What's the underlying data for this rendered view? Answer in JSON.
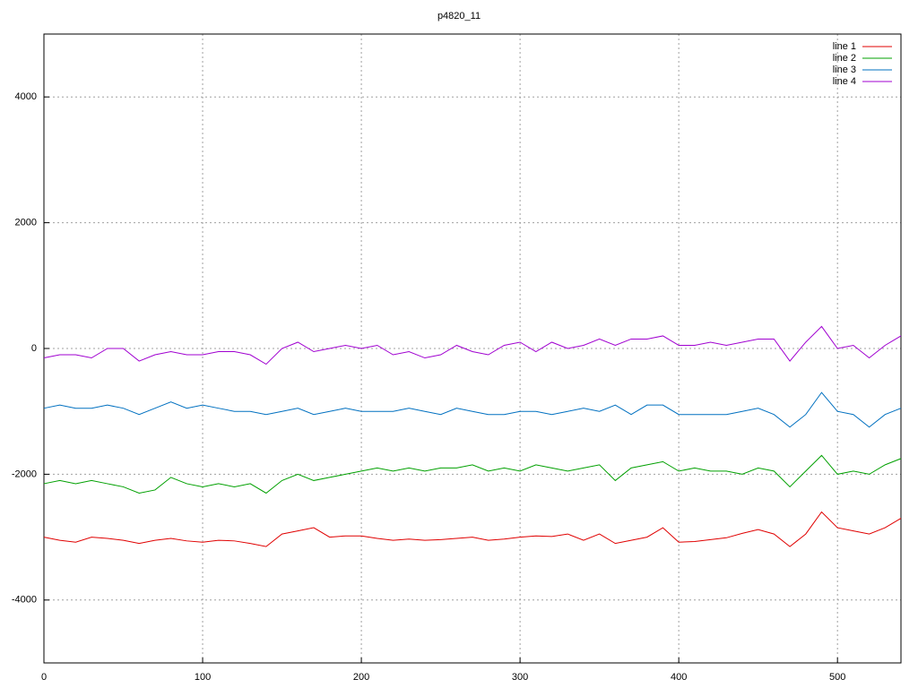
{
  "chart_data": {
    "type": "line",
    "title": "p4820_11",
    "x": [
      0,
      10,
      20,
      30,
      40,
      50,
      60,
      70,
      80,
      90,
      100,
      110,
      120,
      130,
      140,
      150,
      160,
      170,
      180,
      190,
      200,
      210,
      220,
      230,
      240,
      250,
      260,
      270,
      280,
      290,
      300,
      310,
      320,
      330,
      340,
      350,
      360,
      370,
      380,
      390,
      400,
      410,
      420,
      430,
      440,
      450,
      460,
      470,
      480,
      490,
      500,
      510,
      520,
      530,
      540
    ],
    "series": [
      {
        "name": "line 1",
        "color": "#e00000",
        "values": [
          -3000,
          -3050,
          -3080,
          -3000,
          -3020,
          -3050,
          -3100,
          -3050,
          -3020,
          -3060,
          -3080,
          -3050,
          -3060,
          -3100,
          -3150,
          -2950,
          -2900,
          -2850,
          -3000,
          -2980,
          -2980,
          -3020,
          -3050,
          -3030,
          -3050,
          -3040,
          -3020,
          -3000,
          -3050,
          -3030,
          -3000,
          -2980,
          -2990,
          -2950,
          -3050,
          -2950,
          -3100,
          -3050,
          -3000,
          -2850,
          -3080,
          -3070,
          -3040,
          -3010,
          -2940,
          -2880,
          -2950,
          -3150,
          -2950,
          -2600,
          -2850,
          -2900,
          -2950,
          -2850,
          -2700
        ]
      },
      {
        "name": "line 2",
        "color": "#00a000",
        "values": [
          -2150,
          -2100,
          -2150,
          -2100,
          -2150,
          -2200,
          -2300,
          -2250,
          -2050,
          -2150,
          -2200,
          -2150,
          -2200,
          -2150,
          -2300,
          -2100,
          -2000,
          -2100,
          -2050,
          -2000,
          -1950,
          -1900,
          -1950,
          -1900,
          -1950,
          -1900,
          -1900,
          -1850,
          -1950,
          -1900,
          -1950,
          -1850,
          -1900,
          -1950,
          -1900,
          -1850,
          -2100,
          -1900,
          -1850,
          -1800,
          -1950,
          -1900,
          -1950,
          -1950,
          -2000,
          -1900,
          -1950,
          -2200,
          -1950,
          -1700,
          -2000,
          -1950,
          -2000,
          -1850,
          -1750
        ]
      },
      {
        "name": "line 3",
        "color": "#0070c0",
        "values": [
          -950,
          -900,
          -950,
          -950,
          -900,
          -950,
          -1050,
          -950,
          -850,
          -950,
          -900,
          -950,
          -1000,
          -1000,
          -1050,
          -1000,
          -950,
          -1050,
          -1000,
          -950,
          -1000,
          -1000,
          -1000,
          -950,
          -1000,
          -1050,
          -950,
          -1000,
          -1050,
          -1050,
          -1000,
          -1000,
          -1050,
          -1000,
          -950,
          -1000,
          -900,
          -1050,
          -900,
          -900,
          -1050,
          -1050,
          -1050,
          -1050,
          -1000,
          -950,
          -1050,
          -1250,
          -1050,
          -700,
          -1000,
          -1050,
          -1250,
          -1050,
          -950
        ]
      },
      {
        "name": "line 4",
        "color": "#a000d0",
        "values": [
          -150,
          -100,
          -100,
          -150,
          0,
          0,
          -200,
          -100,
          -50,
          -100,
          -100,
          -50,
          -50,
          -100,
          -250,
          0,
          100,
          -50,
          0,
          50,
          0,
          50,
          -100,
          -50,
          -150,
          -100,
          50,
          -50,
          -100,
          50,
          100,
          -50,
          100,
          0,
          50,
          150,
          50,
          150,
          150,
          200,
          50,
          50,
          100,
          50,
          100,
          150,
          150,
          -200,
          100,
          350,
          0,
          50,
          -150,
          50,
          200
        ]
      }
    ],
    "xlim": [
      0,
      540
    ],
    "xticks": [
      0,
      100,
      200,
      300,
      400,
      500
    ],
    "ylim": [
      -5000,
      5000
    ],
    "yticks": [
      -4000,
      -2000,
      0,
      2000,
      4000
    ],
    "grid": true,
    "legend": "top-right"
  }
}
